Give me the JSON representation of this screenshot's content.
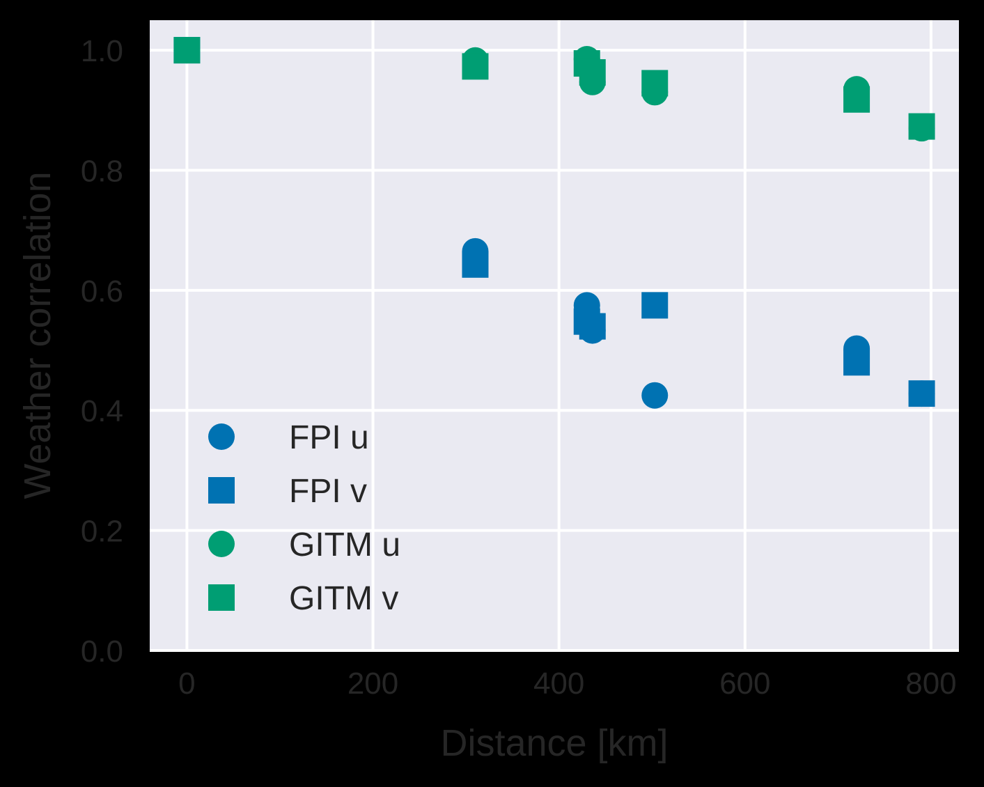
{
  "chart_data": {
    "type": "scatter",
    "title": "",
    "xlabel": "Distance [km]",
    "ylabel": "Weather correlation",
    "xlim": [
      -40,
      830
    ],
    "ylim": [
      0.0,
      1.05
    ],
    "xticks": [
      0,
      200,
      400,
      600,
      800
    ],
    "yticks": [
      0.0,
      0.2,
      0.4,
      0.6,
      0.8,
      1.0
    ],
    "xtick_labels": [
      "0",
      "200",
      "400",
      "600",
      "800"
    ],
    "ytick_labels": [
      "0.0",
      "0.2",
      "0.4",
      "0.6",
      "0.8",
      "1.0"
    ],
    "grid": true,
    "legend_position": "lower-left",
    "background_color": "#eaeaf2",
    "series": [
      {
        "name": "FPI u",
        "marker": "circle",
        "color": "#0072b2",
        "x": [
          0,
          310,
          430,
          436,
          503,
          720,
          790
        ],
        "y": [
          1.0,
          0.665,
          0.575,
          0.533,
          0.425,
          0.503,
          0.428
        ]
      },
      {
        "name": "FPI v",
        "marker": "square",
        "color": "#0072b2",
        "x": [
          0,
          310,
          430,
          436,
          503,
          720,
          790
        ],
        "y": [
          1.0,
          0.643,
          0.548,
          0.54,
          0.575,
          0.48,
          0.428
        ]
      },
      {
        "name": "GITM u",
        "marker": "circle",
        "color": "#009e73",
        "x": [
          0,
          310,
          430,
          436,
          503,
          720,
          790
        ],
        "y": [
          1.0,
          0.983,
          0.985,
          0.947,
          0.93,
          0.935,
          0.87
        ]
      },
      {
        "name": "GITM v",
        "marker": "square",
        "color": "#009e73",
        "x": [
          0,
          310,
          430,
          436,
          503,
          720,
          790
        ],
        "y": [
          1.0,
          0.973,
          0.978,
          0.963,
          0.945,
          0.918,
          0.873
        ]
      }
    ]
  }
}
